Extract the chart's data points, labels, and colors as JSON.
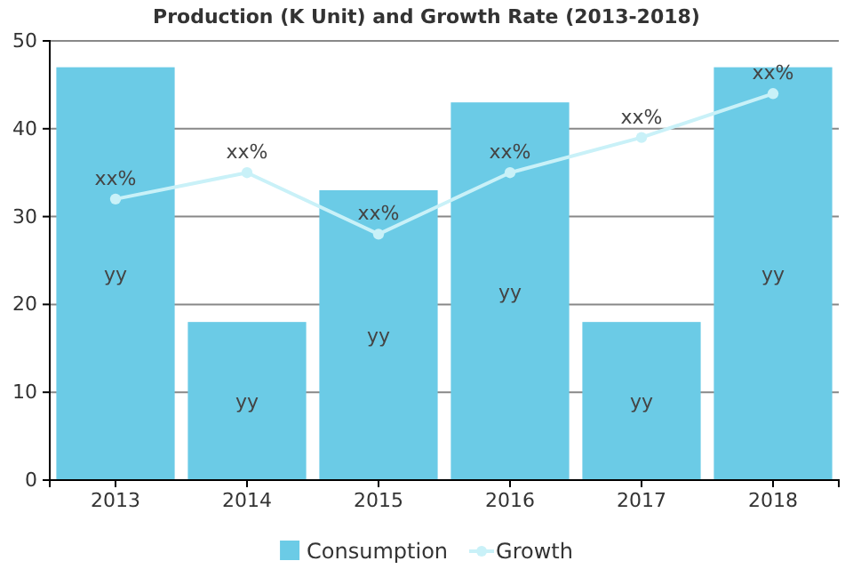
{
  "chart_data": {
    "type": "bar",
    "title": "Production (K Unit) and Growth Rate (2013-2018)",
    "categories": [
      "2013",
      "2014",
      "2015",
      "2016",
      "2017",
      "2018"
    ],
    "ylim": [
      0,
      50
    ],
    "yticks": [
      0,
      10,
      20,
      30,
      40,
      50
    ],
    "grid": "y",
    "legend": "bottom",
    "series": [
      {
        "name": "Consumption",
        "color": "#6bcbe6",
        "values": [
          47,
          18,
          33,
          43,
          18,
          47
        ],
        "value_labels": [
          "yy",
          "yy",
          "yy",
          "yy",
          "yy",
          "yy"
        ]
      },
      {
        "name": "Growth",
        "type": "line",
        "color": "#c9f1f8",
        "marker": "circle",
        "values": [
          32,
          35,
          28,
          35,
          39,
          44
        ],
        "value_labels": [
          "xx%",
          "xx%",
          "xx%",
          "xx%",
          "xx%",
          "xx%"
        ]
      }
    ]
  }
}
